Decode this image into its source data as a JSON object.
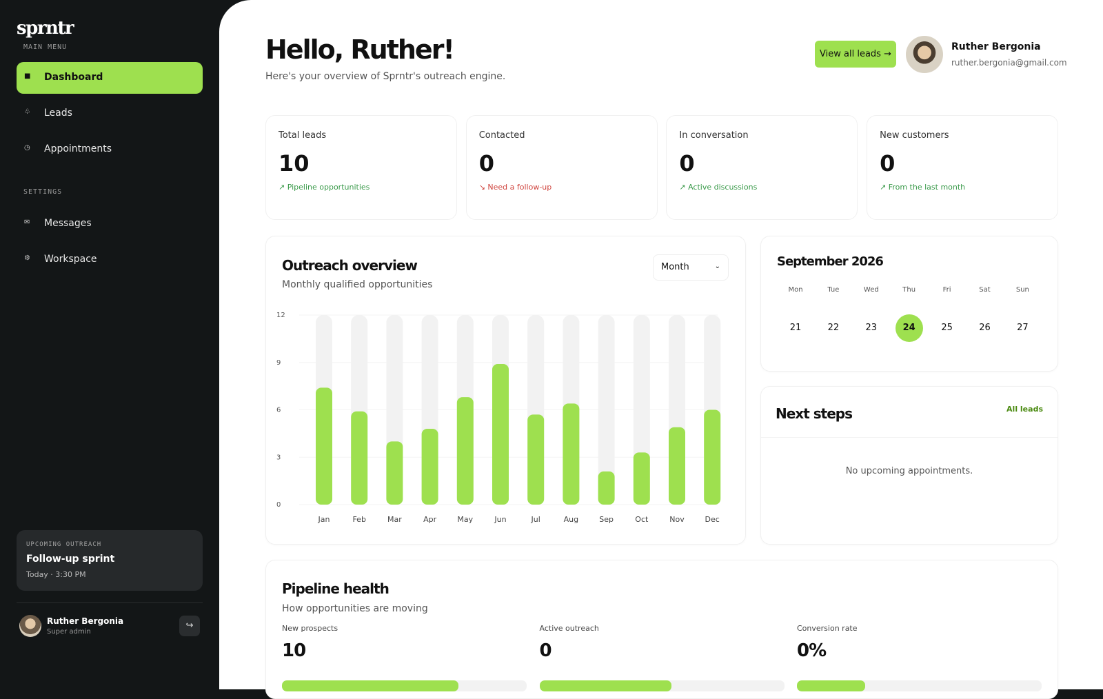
{
  "sidebar": {
    "logo": "sprntr",
    "main_menu_label": "MAIN MENU",
    "main_menu": [
      "Dashboard",
      "Leads",
      "Appointments"
    ],
    "active": "Dashboard",
    "settings_label": "SETTINGS",
    "settings_menu": [
      "Messages",
      "Workspace"
    ],
    "upcoming": {
      "label": "UPCOMING OUTREACH",
      "title": "Follow-up sprint",
      "time": "Today · 3:30 PM"
    },
    "user": {
      "name": "Ruther Bergonia",
      "role": "Super admin"
    }
  },
  "header": {
    "title": "Hello, Ruther!",
    "subtitle": "Here's your overview of Sprntr's outreach engine.",
    "button": "View all leads →",
    "user_name": "Ruther Bergonia",
    "user_email": "ruther.bergonia@gmail.com"
  },
  "stats": [
    {
      "label": "Total leads",
      "value": 10,
      "note": "↗ Pipeline opportunities",
      "trend": "up"
    },
    {
      "label": "Contacted",
      "value": 0,
      "note": "↘ Need a follow-up",
      "trend": "down"
    },
    {
      "label": "In conversation",
      "value": 0,
      "note": "↗ Active discussions",
      "trend": "up"
    },
    {
      "label": "New customers",
      "value": 0,
      "note": "↗ From the last month",
      "trend": "up"
    }
  ],
  "outreach_filter": "Month",
  "chart_data": {
    "type": "bar",
    "title": "Outreach overview",
    "subtitle": "Monthly qualified opportunities",
    "categories": [
      "Jan",
      "Feb",
      "Mar",
      "Apr",
      "May",
      "Jun",
      "Jul",
      "Aug",
      "Sep",
      "Oct",
      "Nov",
      "Dec"
    ],
    "values": [
      7.4,
      5.9,
      4,
      4.8,
      6.8,
      8.9,
      5.7,
      6.4,
      2.1,
      3.3,
      4.9,
      6.0
    ],
    "color": "#9ee04f",
    "track_color": "#f2f2f2",
    "ylim": [
      0,
      12
    ],
    "yticks": [
      0,
      3,
      6,
      9,
      12
    ],
    "grid": true
  },
  "calendar": {
    "title": "September 2026",
    "weekdays": [
      "Mon",
      "Tue",
      "Wed",
      "Thu",
      "Fri",
      "Sat",
      "Sun"
    ],
    "days": [
      21,
      22,
      23,
      24,
      25,
      26,
      27
    ],
    "selected": 24
  },
  "next_steps": {
    "title": "Next steps",
    "link": "All leads",
    "empty": "No upcoming appointments."
  },
  "pipeline": {
    "title": "Pipeline health",
    "subtitle": "How opportunities are moving",
    "metrics": [
      {
        "label": "New prospects",
        "value": 10,
        "fill": 72
      },
      {
        "label": "Active outreach",
        "value": 0,
        "fill": 54
      },
      {
        "label": "Conversion rate",
        "value": "0%",
        "fill": 28
      }
    ]
  }
}
